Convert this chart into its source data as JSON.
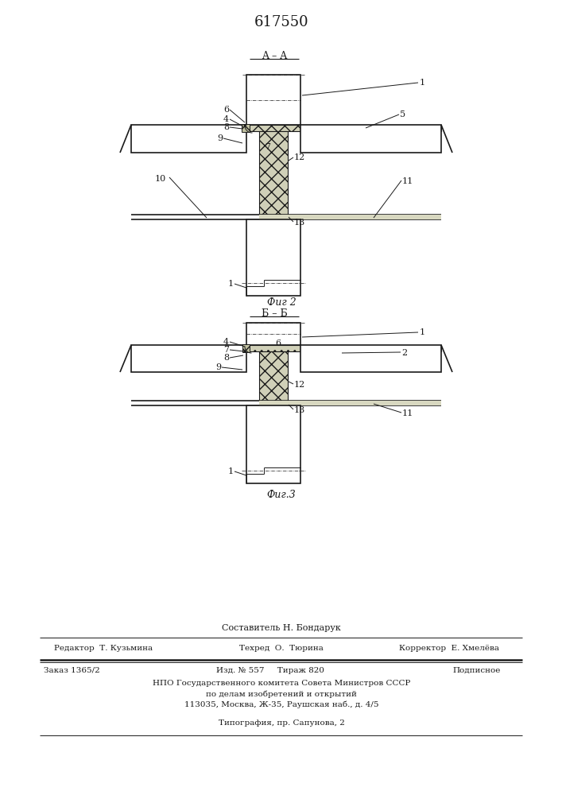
{
  "title": "617550",
  "fig2_label": "Фиг 2",
  "fig3_label": "Фиг.3",
  "section_aa": "A–A",
  "section_bb": "Б–Б",
  "bg_color": "#ffffff",
  "line_color": "#1a1a1a",
  "footer_line1": "Составитель Н. Бондарук",
  "footer_line2_left": "Редактор  Т. Кузьмина",
  "footer_line2_mid": "Техред  О.  Тюрина",
  "footer_line2_right": "Корректор  Е. Хмелёва",
  "footer_line3_left": "Заказ 1365/2",
  "footer_line3_mid": "Изд. № 557     Тираж 820",
  "footer_line3_right": "Подписное",
  "footer_line4": "НПО Государственного комитета Совета Министров СССР",
  "footer_line5": "по делам изобретений и открытий",
  "footer_line6": "113035, Москва, Ж-35, Раушская наб., д. 4/5",
  "footer_line7": "Типография, пр. Сапунова, 2"
}
